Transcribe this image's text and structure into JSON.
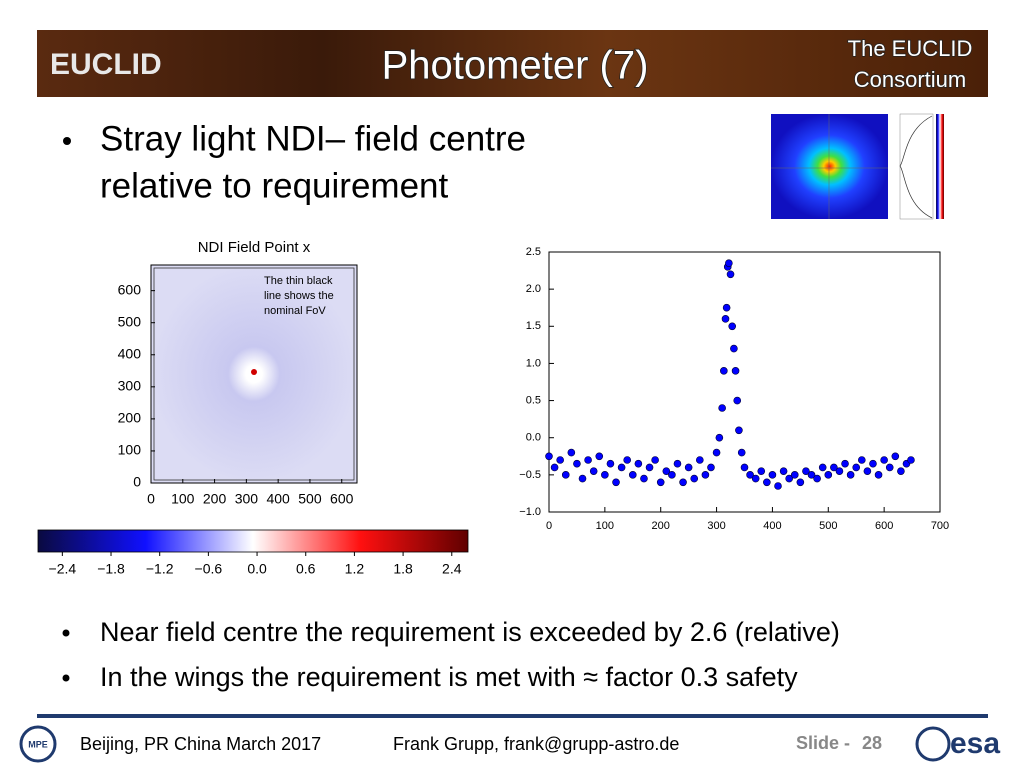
{
  "header": {
    "logo": "EUCLID",
    "title": "Photometer (7)",
    "consortium": [
      "The EUCLID",
      "Consortium"
    ]
  },
  "bullet_top": {
    "lines": [
      "Stray light NDI– field centre",
      "relative to requirement"
    ]
  },
  "chart_data": [
    {
      "type": "heatmap",
      "title": "NDI Field Point x",
      "annotation": [
        "The thin black",
        "line shows the",
        "nominal FoV"
      ],
      "xlim": [
        0,
        648
      ],
      "ylim": [
        0,
        680
      ],
      "xticks": [
        0,
        100,
        200,
        300,
        400,
        500,
        600
      ],
      "yticks": [
        0,
        100,
        200,
        300,
        400,
        500,
        600
      ],
      "colorbar": {
        "clim": [
          -2.7,
          2.6
        ],
        "ticks": [
          {
            "value": -2.4,
            "label": "−2.4"
          },
          {
            "value": -1.8,
            "label": "−1.8"
          },
          {
            "value": -1.2,
            "label": "−1.2"
          },
          {
            "value": -0.6,
            "label": "−0.6"
          },
          {
            "value": 0,
            "label": "0.0"
          },
          0.6,
          1.2,
          1.8,
          2.4
        ]
      }
    },
    {
      "type": "scatter",
      "color": "#0000ff",
      "xlim": [
        0,
        700
      ],
      "ylim": [
        -1,
        2.5
      ],
      "xticks": [
        0,
        100,
        200,
        300,
        400,
        500,
        600,
        700
      ],
      "yticks": [
        {
          "value": -1,
          "label": "−1.0"
        },
        {
          "value": -0.5,
          "label": "−0.5"
        },
        {
          "value": 0,
          "label": "0.0"
        },
        0.5,
        {
          "value": 1,
          "label": "1.0"
        },
        1.5,
        {
          "value": 2,
          "label": "2.0"
        },
        2.5
      ],
      "x": [
        0,
        10,
        20,
        30,
        40,
        50,
        60,
        70,
        80,
        90,
        100,
        110,
        120,
        130,
        140,
        150,
        160,
        170,
        180,
        190,
        200,
        210,
        220,
        230,
        240,
        250,
        260,
        270,
        280,
        290,
        300,
        305,
        310,
        313,
        316,
        318,
        320,
        322,
        325,
        328,
        331,
        334,
        337,
        340,
        345,
        350,
        360,
        370,
        380,
        390,
        400,
        410,
        420,
        430,
        440,
        450,
        460,
        470,
        480,
        490,
        500,
        510,
        520,
        530,
        540,
        550,
        560,
        570,
        580,
        590,
        600,
        610,
        620,
        630,
        640,
        648
      ],
      "values": [
        -0.25,
        -0.4,
        -0.3,
        -0.5,
        -0.2,
        -0.35,
        -0.55,
        -0.3,
        -0.45,
        -0.25,
        -0.5,
        -0.35,
        -0.6,
        -0.4,
        -0.3,
        -0.5,
        -0.35,
        -0.55,
        -0.4,
        -0.3,
        -0.6,
        -0.45,
        -0.5,
        -0.35,
        -0.6,
        -0.4,
        -0.55,
        -0.3,
        -0.5,
        -0.4,
        -0.2,
        0.0,
        0.4,
        0.9,
        1.6,
        1.75,
        2.3,
        2.35,
        2.2,
        1.5,
        1.2,
        0.9,
        0.5,
        0.1,
        -0.2,
        -0.4,
        -0.5,
        -0.55,
        -0.45,
        -0.6,
        -0.5,
        -0.65,
        -0.45,
        -0.55,
        -0.5,
        -0.6,
        -0.45,
        -0.5,
        -0.55,
        -0.4,
        -0.5,
        -0.4,
        -0.45,
        -0.35,
        -0.5,
        -0.4,
        -0.3,
        -0.45,
        -0.35,
        -0.5,
        -0.3,
        -0.4,
        -0.25,
        -0.45,
        -0.35,
        -0.3
      ]
    }
  ],
  "bullets_bottom": [
    "Near field centre the requirement is exceeded by 2.6 (relative)",
    "In the wings the requirement is met with ≈ factor 0.3 safety"
  ],
  "footer": {
    "mpe": "MPE",
    "place": "Beijing, PR China March 2017",
    "author": "Frank Grupp, frank@grupp-astro.de",
    "slide_label": "Slide - ",
    "slide_number": "28",
    "esa": "esa"
  }
}
